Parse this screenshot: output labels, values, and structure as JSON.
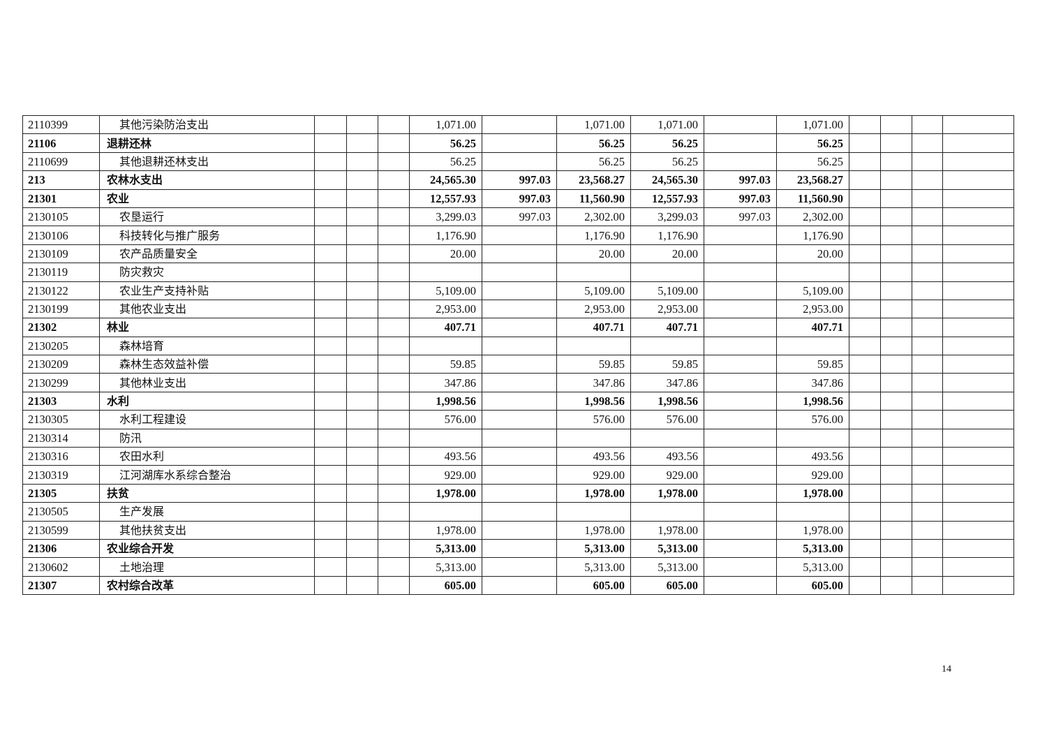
{
  "table": {
    "rows": [
      {
        "code": "2110399",
        "name": "其他污染防治支出",
        "level": "item",
        "values": [
          "1,071.00",
          "",
          "1,071.00",
          "1,071.00",
          "",
          "1,071.00"
        ]
      },
      {
        "code": "21106",
        "name": "退耕还林",
        "level": "group",
        "values": [
          "56.25",
          "",
          "56.25",
          "56.25",
          "",
          "56.25"
        ]
      },
      {
        "code": "2110699",
        "name": "其他退耕还林支出",
        "level": "item",
        "values": [
          "56.25",
          "",
          "56.25",
          "56.25",
          "",
          "56.25"
        ]
      },
      {
        "code": "213",
        "name": "农林水支出",
        "level": "group",
        "values": [
          "24,565.30",
          "997.03",
          "23,568.27",
          "24,565.30",
          "997.03",
          "23,568.27"
        ]
      },
      {
        "code": "21301",
        "name": "农业",
        "level": "group",
        "values": [
          "12,557.93",
          "997.03",
          "11,560.90",
          "12,557.93",
          "997.03",
          "11,560.90"
        ]
      },
      {
        "code": "2130105",
        "name": "农垦运行",
        "level": "item",
        "values": [
          "3,299.03",
          "997.03",
          "2,302.00",
          "3,299.03",
          "997.03",
          "2,302.00"
        ]
      },
      {
        "code": "2130106",
        "name": "科技转化与推广服务",
        "level": "item",
        "values": [
          "1,176.90",
          "",
          "1,176.90",
          "1,176.90",
          "",
          "1,176.90"
        ]
      },
      {
        "code": "2130109",
        "name": "农产品质量安全",
        "level": "item",
        "values": [
          "20.00",
          "",
          "20.00",
          "20.00",
          "",
          "20.00"
        ]
      },
      {
        "code": "2130119",
        "name": "防灾救灾",
        "level": "item",
        "values": [
          "",
          "",
          "",
          "",
          "",
          ""
        ]
      },
      {
        "code": "2130122",
        "name": "农业生产支持补贴",
        "level": "item",
        "values": [
          "5,109.00",
          "",
          "5,109.00",
          "5,109.00",
          "",
          "5,109.00"
        ]
      },
      {
        "code": "2130199",
        "name": "其他农业支出",
        "level": "item",
        "values": [
          "2,953.00",
          "",
          "2,953.00",
          "2,953.00",
          "",
          "2,953.00"
        ]
      },
      {
        "code": "21302",
        "name": "林业",
        "level": "group",
        "values": [
          "407.71",
          "",
          "407.71",
          "407.71",
          "",
          "407.71"
        ]
      },
      {
        "code": "2130205",
        "name": "森林培育",
        "level": "item",
        "values": [
          "",
          "",
          "",
          "",
          "",
          ""
        ]
      },
      {
        "code": "2130209",
        "name": "森林生态效益补偿",
        "level": "item",
        "values": [
          "59.85",
          "",
          "59.85",
          "59.85",
          "",
          "59.85"
        ]
      },
      {
        "code": "2130299",
        "name": "其他林业支出",
        "level": "item",
        "values": [
          "347.86",
          "",
          "347.86",
          "347.86",
          "",
          "347.86"
        ]
      },
      {
        "code": "21303",
        "name": "水利",
        "level": "group",
        "values": [
          "1,998.56",
          "",
          "1,998.56",
          "1,998.56",
          "",
          "1,998.56"
        ]
      },
      {
        "code": "2130305",
        "name": "水利工程建设",
        "level": "item",
        "values": [
          "576.00",
          "",
          "576.00",
          "576.00",
          "",
          "576.00"
        ]
      },
      {
        "code": "2130314",
        "name": "防汛",
        "level": "item",
        "values": [
          "",
          "",
          "",
          "",
          "",
          ""
        ]
      },
      {
        "code": "2130316",
        "name": "农田水利",
        "level": "item",
        "values": [
          "493.56",
          "",
          "493.56",
          "493.56",
          "",
          "493.56"
        ]
      },
      {
        "code": "2130319",
        "name": "江河湖库水系综合整治",
        "level": "item",
        "values": [
          "929.00",
          "",
          "929.00",
          "929.00",
          "",
          "929.00"
        ]
      },
      {
        "code": "21305",
        "name": "扶贫",
        "level": "group",
        "values": [
          "1,978.00",
          "",
          "1,978.00",
          "1,978.00",
          "",
          "1,978.00"
        ]
      },
      {
        "code": "2130505",
        "name": "生产发展",
        "level": "item",
        "values": [
          "",
          "",
          "",
          "",
          "",
          ""
        ]
      },
      {
        "code": "2130599",
        "name": "其他扶贫支出",
        "level": "item",
        "values": [
          "1,978.00",
          "",
          "1,978.00",
          "1,978.00",
          "",
          "1,978.00"
        ]
      },
      {
        "code": "21306",
        "name": "农业综合开发",
        "level": "group",
        "values": [
          "5,313.00",
          "",
          "5,313.00",
          "5,313.00",
          "",
          "5,313.00"
        ]
      },
      {
        "code": "2130602",
        "name": "土地治理",
        "level": "item",
        "values": [
          "5,313.00",
          "",
          "5,313.00",
          "5,313.00",
          "",
          "5,313.00"
        ]
      },
      {
        "code": "21307",
        "name": "农村综合改革",
        "level": "group",
        "values": [
          "605.00",
          "",
          "605.00",
          "605.00",
          "",
          "605.00"
        ]
      }
    ]
  },
  "page_number": "14"
}
